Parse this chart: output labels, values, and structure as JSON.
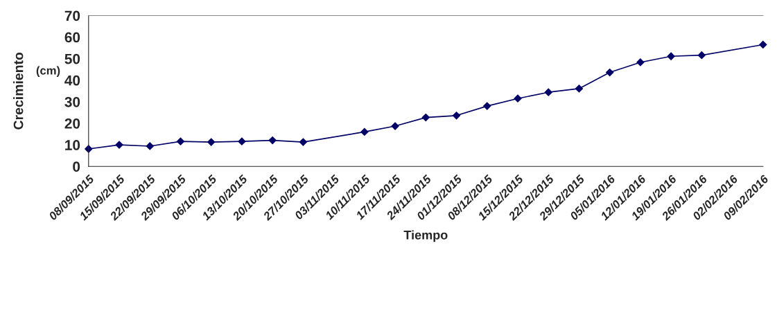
{
  "chart_data": {
    "type": "line",
    "xlabel": "Tiempo",
    "ylabel": "Crecimiento",
    "annotations": [
      "(cm)"
    ],
    "categories": [
      "08/09/2015",
      "15/09/2015",
      "22/09/2015",
      "29/09/2015",
      "06/10/2015",
      "13/10/2015",
      "20/10/2015",
      "27/10/2015",
      "03/11/2015",
      "10/11/2015",
      "17/11/2015",
      "24/11/2015",
      "01/12/2015",
      "08/12/2015",
      "15/12/2015",
      "22/12/2015",
      "29/12/2015",
      "05/01/2016",
      "12/01/2016",
      "19/01/2016",
      "26/01/2016",
      "02/02/2016",
      "09/02/2016"
    ],
    "series": [
      {
        "color": "#000066",
        "values": [
          8.1,
          10,
          9.4,
          11.6,
          11.3,
          11.6,
          12.1,
          11.3,
          null,
          16,
          18.7,
          22.7,
          23.6,
          28,
          31.5,
          34.4,
          36.1,
          43.6,
          48.3,
          51.1,
          51.6,
          null,
          56.5
        ]
      }
    ],
    "ylim": [
      0,
      70
    ],
    "yticks": [
      0,
      10,
      20,
      30,
      40,
      50,
      60,
      70
    ],
    "grid": false,
    "legend": false,
    "marker": "diamond",
    "line_style": "solid"
  }
}
